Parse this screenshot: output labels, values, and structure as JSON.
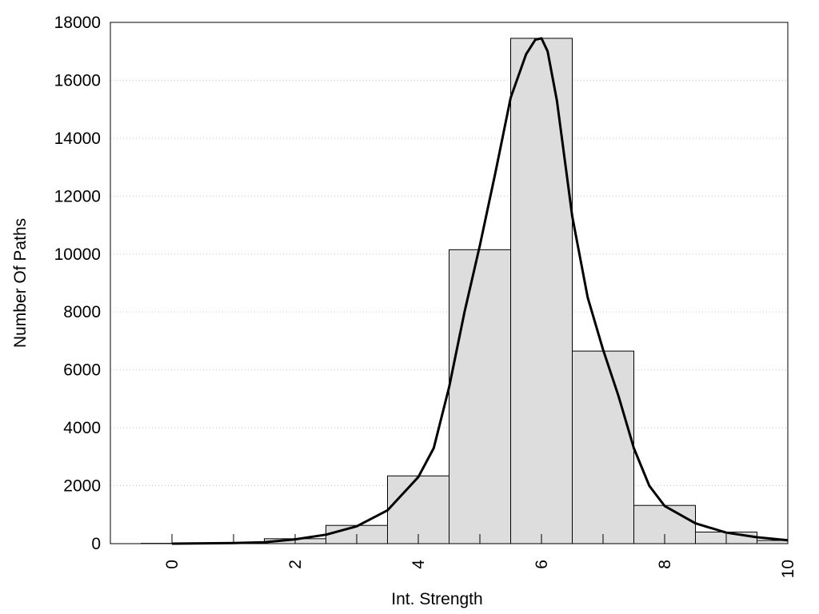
{
  "chart_data": {
    "type": "bar",
    "xlabel": "Int. Strength",
    "ylabel": "Number Of Paths",
    "xlim": [
      -1,
      10
    ],
    "ylim": [
      0,
      18000
    ],
    "x_ticks": [
      "0",
      "2",
      "4",
      "6",
      "8",
      "10"
    ],
    "y_ticks": [
      "0",
      "2000",
      "4000",
      "6000",
      "8000",
      "10000",
      "12000",
      "14000",
      "16000",
      "18000"
    ],
    "grid": "horizontal dotted",
    "bar_color": "#dddddd",
    "bars": [
      {
        "x": 0,
        "value": 10
      },
      {
        "x": 1,
        "value": 20
      },
      {
        "x": 2,
        "value": 170
      },
      {
        "x": 3,
        "value": 630
      },
      {
        "x": 4,
        "value": 2340
      },
      {
        "x": 5,
        "value": 10150
      },
      {
        "x": 6,
        "value": 17450
      },
      {
        "x": 7,
        "value": 6650
      },
      {
        "x": 8,
        "value": 1320
      },
      {
        "x": 9,
        "value": 400
      },
      {
        "x": 10,
        "value": 110
      }
    ],
    "fit_curve": {
      "x": [
        0,
        0.5,
        1,
        1.5,
        2,
        2.5,
        3,
        3.5,
        4,
        4.25,
        4.5,
        4.75,
        5,
        5.25,
        5.5,
        5.75,
        5.9,
        6,
        6.1,
        6.25,
        6.5,
        6.75,
        7,
        7.25,
        7.5,
        7.75,
        8,
        8.5,
        9,
        9.5,
        10
      ],
      "y": [
        0,
        10,
        20,
        50,
        150,
        310,
        600,
        1150,
        2300,
        3300,
        5400,
        8000,
        10300,
        12800,
        15400,
        16900,
        17400,
        17450,
        17000,
        15300,
        11300,
        8500,
        6700,
        5100,
        3300,
        2000,
        1300,
        700,
        380,
        220,
        120
      ]
    }
  }
}
